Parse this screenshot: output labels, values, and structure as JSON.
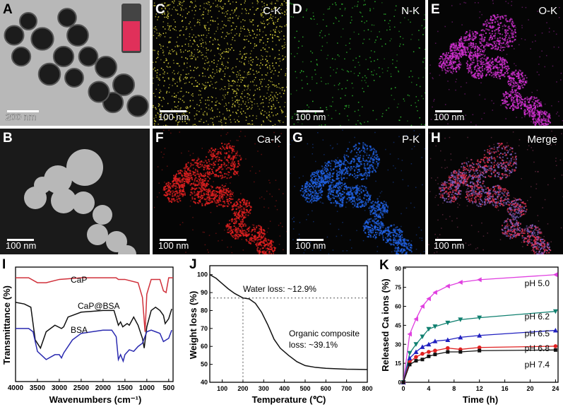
{
  "panels": {
    "A": {
      "letter": "A",
      "scale": "200 nm"
    },
    "B": {
      "letter": "B",
      "scale": "100 nm"
    },
    "C": {
      "letter": "C",
      "title": "C-K",
      "scale": "100 nm",
      "color": "#e8e040"
    },
    "D": {
      "letter": "D",
      "title": "N-K",
      "scale": "100 nm",
      "color": "#30c030"
    },
    "E": {
      "letter": "E",
      "title": "O-K",
      "scale": "100 nm",
      "color": "#d030d0"
    },
    "F": {
      "letter": "F",
      "title": "Ca-K",
      "scale": "100 nm",
      "color": "#e02020"
    },
    "G": {
      "letter": "G",
      "title": "P-K",
      "scale": "100 nm",
      "color": "#2060e0"
    },
    "H": {
      "letter": "H",
      "title": "Merge",
      "scale": "100 nm",
      "color": "#c05080"
    }
  },
  "chart_data": [
    {
      "panel": "I",
      "type": "line",
      "xlabel": "Wavenumbers (cm⁻¹)",
      "ylabel": "Transmittance (%)",
      "xlim": [
        4000,
        400
      ],
      "xticks": [
        "4000",
        "3500",
        "3000",
        "2500",
        "2000",
        "1500",
        "1000",
        "500"
      ],
      "series": [
        {
          "name": "CaP",
          "color": "#d0303a",
          "x": [
            4000,
            3700,
            3500,
            3300,
            3000,
            2500,
            2000,
            1700,
            1650,
            1500,
            1200,
            1100,
            1040,
            1000,
            900,
            700,
            620,
            560,
            500,
            400
          ],
          "y": [
            90,
            90,
            87,
            87,
            89,
            90,
            90,
            90,
            89,
            89,
            87,
            78,
            57,
            80,
            89,
            89,
            82,
            81,
            90,
            90
          ]
        },
        {
          "name": "CaP@BSA",
          "color": "#111111",
          "x": [
            4000,
            3800,
            3650,
            3550,
            3430,
            3300,
            3100,
            2950,
            2900,
            2800,
            2500,
            2000,
            1750,
            1650,
            1600,
            1550,
            1450,
            1400,
            1300,
            1200,
            1100,
            1060,
            1000,
            900,
            800,
            700,
            620,
            580,
            500,
            430
          ],
          "y": [
            75,
            74,
            72,
            52,
            47,
            57,
            61,
            59,
            60,
            66,
            69,
            70,
            70,
            61,
            63,
            60,
            62,
            61,
            66,
            61,
            53,
            47,
            60,
            70,
            72,
            70,
            67,
            62,
            65,
            71
          ]
        },
        {
          "name": "BSA",
          "color": "#2a2ab0",
          "x": [
            4000,
            3700,
            3600,
            3500,
            3300,
            3100,
            3000,
            2950,
            2900,
            2700,
            2500,
            2000,
            1800,
            1700,
            1650,
            1600,
            1540,
            1500,
            1400,
            1300,
            1200,
            1100,
            1000,
            900,
            800,
            700,
            620,
            500,
            430
          ],
          "y": [
            59,
            59,
            57,
            45,
            40,
            43,
            43,
            41,
            44,
            52,
            56,
            58,
            58,
            54,
            40,
            43,
            39,
            43,
            46,
            45,
            48,
            50,
            57,
            58,
            57,
            56,
            51,
            53,
            58
          ]
        }
      ]
    },
    {
      "panel": "J",
      "type": "line",
      "xlabel": "Temperature (℃)",
      "ylabel": "Weight loss (%)",
      "xlim": [
        40,
        800
      ],
      "ylim": [
        40,
        105
      ],
      "xticks": [
        100,
        200,
        300,
        400,
        500,
        600,
        700,
        800
      ],
      "yticks": [
        40,
        50,
        60,
        70,
        80,
        90,
        100
      ],
      "x": [
        40,
        70,
        100,
        130,
        160,
        200,
        230,
        260,
        290,
        320,
        350,
        380,
        420,
        460,
        500,
        550,
        600,
        700,
        800
      ],
      "y": [
        100,
        98,
        95,
        92,
        89.5,
        87,
        86.5,
        84,
        79,
        72,
        64,
        59,
        55,
        51.5,
        49.3,
        48.3,
        47.8,
        47.3,
        47.1
      ],
      "reference_lines": {
        "y": 87,
        "x": 200
      },
      "annotations": [
        "Water loss: ~12.9%",
        "Organic composite",
        "loss: ~39.1%"
      ]
    },
    {
      "panel": "K",
      "type": "line",
      "xlabel": "Time (h)",
      "ylabel": "Released Ca ions (%)",
      "xlim": [
        0,
        24
      ],
      "ylim": [
        0,
        90
      ],
      "xticks": [
        0,
        4,
        8,
        12,
        16,
        20,
        24
      ],
      "yticks": [
        0,
        15,
        30,
        45,
        60,
        75,
        90
      ],
      "x": [
        0,
        1,
        2,
        3,
        4,
        5,
        7,
        9,
        12,
        24
      ],
      "series": [
        {
          "name": "pH 5.0",
          "color": "#e040e0",
          "marker": "triangle-left",
          "values": [
            0,
            38,
            50,
            60,
            66,
            71,
            76,
            79,
            81,
            85
          ]
        },
        {
          "name": "pH 6.2",
          "color": "#108070",
          "marker": "triangle-down",
          "values": [
            0,
            23,
            30,
            36,
            42,
            44,
            47,
            49.5,
            51,
            56
          ]
        },
        {
          "name": "pH 6.5",
          "color": "#2020c0",
          "marker": "triangle-up",
          "values": [
            0,
            19,
            24,
            28,
            30,
            32.5,
            33.5,
            35.5,
            37,
            41
          ]
        },
        {
          "name": "pH 6.8",
          "color": "#e02020",
          "marker": "circle",
          "values": [
            0,
            16,
            20,
            22.5,
            24,
            25,
            27,
            26,
            27.5,
            28.5
          ]
        },
        {
          "name": "pH 7.4",
          "color": "#111111",
          "marker": "square",
          "values": [
            0,
            14,
            17,
            18,
            20.5,
            22,
            24,
            24,
            25,
            25.5
          ]
        }
      ]
    }
  ],
  "chart_labels": {
    "I": "I",
    "J": "J",
    "K": "K"
  }
}
